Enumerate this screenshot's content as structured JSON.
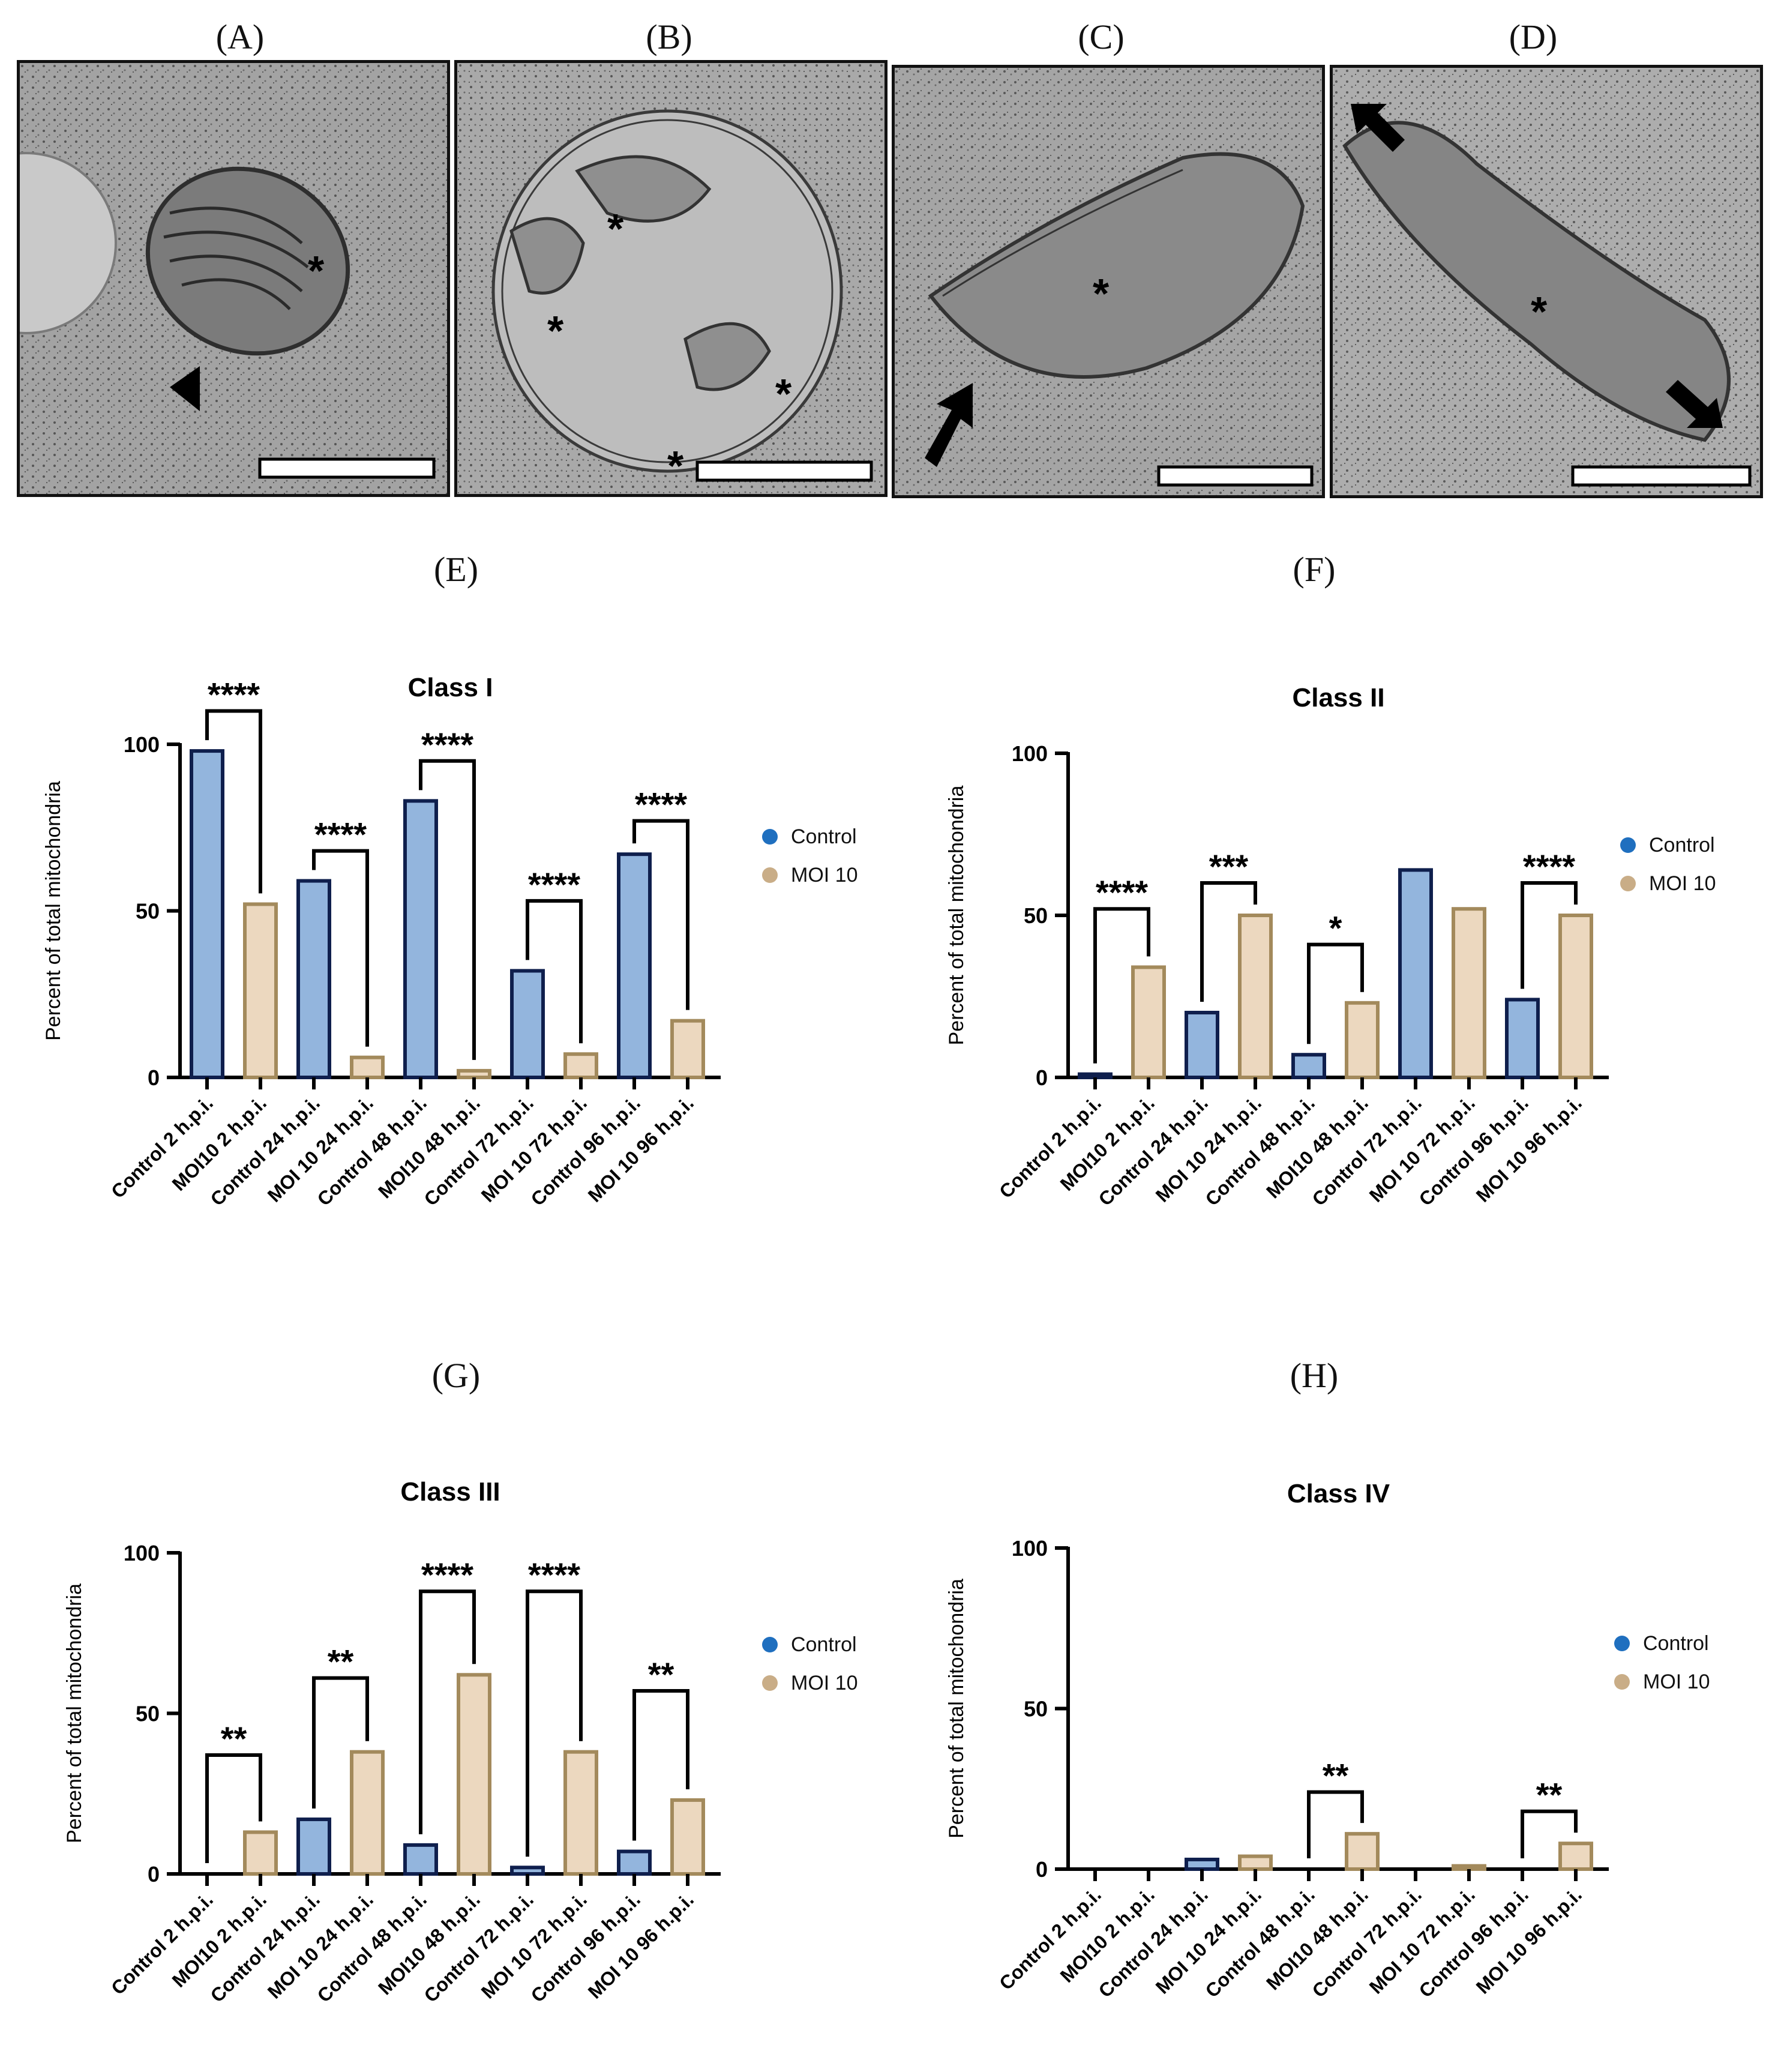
{
  "micrographs": [
    {
      "label": "(A)",
      "markers": [
        "mitochondrion-asterisk",
        "arrowhead"
      ]
    },
    {
      "label": "(B)",
      "markers": [
        "mitochondrion-asterisk"
      ]
    },
    {
      "label": "(C)",
      "markers": [
        "mitochondrion-asterisk",
        "arrow"
      ]
    },
    {
      "label": "(D)",
      "markers": [
        "mitochondrion-asterisk",
        "arrow"
      ]
    }
  ],
  "legend": {
    "control": "Control",
    "moi": "MOI 10"
  },
  "colors": {
    "control_fill": "#93b5dd",
    "control_edge": "#0f1f4d",
    "moi_fill": "#ecd8bf",
    "moi_edge": "#a38a5c",
    "control_dot": "#1f6fbf",
    "moi_dot": "#c9ad87"
  },
  "chart_data": [
    {
      "panel": "(E)",
      "type": "bar",
      "title": "Class I",
      "ylabel": "Percent of total mitochondria",
      "xlabel": "",
      "ylim": [
        0,
        100
      ],
      "yticks": [
        0,
        50,
        100
      ],
      "categories": [
        "Control 2 h.p.i.",
        "MOI10 2 h.p.i.",
        "Control 24 h.p.i.",
        "MOI 10 24 h.p.i.",
        "Control 48 h.p.i.",
        "MOI10 48 h.p.i.",
        "Control 72 h.p.i.",
        "MOI 10 72 h.p.i.",
        "Control 96 h.p.i.",
        "MOI 10 96 h.p.i."
      ],
      "values": [
        98,
        52,
        59,
        6,
        83,
        2,
        32,
        7,
        67,
        17
      ],
      "significance": [
        {
          "from": 0,
          "to": 1,
          "label": "****",
          "level": 110
        },
        {
          "from": 2,
          "to": 3,
          "label": "****",
          "level": 68
        },
        {
          "from": 4,
          "to": 5,
          "label": "****",
          "level": 95
        },
        {
          "from": 6,
          "to": 7,
          "label": "****",
          "level": 53
        },
        {
          "from": 8,
          "to": 9,
          "label": "****",
          "level": 77
        }
      ]
    },
    {
      "panel": "(F)",
      "type": "bar",
      "title": "Class II",
      "ylabel": "Percent of total mitochondria",
      "xlabel": "",
      "ylim": [
        0,
        100
      ],
      "yticks": [
        0,
        50,
        100
      ],
      "categories": [
        "Control 2 h.p.i.",
        "MOI10 2 h.p.i.",
        "Control 24 h.p.i.",
        "MOI 10 24 h.p.i.",
        "Control 48 h.p.i.",
        "MOI10 48 h.p.i.",
        "Control 72 h.p.i.",
        "MOI 10 72 h.p.i.",
        "Control 96 h.p.i.",
        "MOI 10 96 h.p.i."
      ],
      "values": [
        1,
        34,
        20,
        50,
        7,
        23,
        64,
        52,
        24,
        50
      ],
      "significance": [
        {
          "from": 0,
          "to": 1,
          "label": "****",
          "level": 52
        },
        {
          "from": 2,
          "to": 3,
          "label": "***",
          "level": 60
        },
        {
          "from": 4,
          "to": 5,
          "label": "*",
          "level": 41
        },
        {
          "from": 8,
          "to": 9,
          "label": "****",
          "level": 60
        }
      ]
    },
    {
      "panel": "(G)",
      "type": "bar",
      "title": "Class III",
      "ylabel": "Percent of total mitochondria",
      "xlabel": "",
      "ylim": [
        0,
        100
      ],
      "yticks": [
        0,
        50,
        100
      ],
      "categories": [
        "Control 2 h.p.i.",
        "MOI10 2 h.p.i.",
        "Control 24 h.p.i.",
        "MOI 10 24 h.p.i.",
        "Control 48 h.p.i.",
        "MOI10 48 h.p.i.",
        "Control 72 h.p.i.",
        "MOI 10 72 h.p.i.",
        "Control 96 h.p.i.",
        "MOI 10 96 h.p.i."
      ],
      "values": [
        0,
        13,
        17,
        38,
        9,
        62,
        2,
        38,
        7,
        23
      ],
      "significance": [
        {
          "from": 0,
          "to": 1,
          "label": "**",
          "level": 37
        },
        {
          "from": 2,
          "to": 3,
          "label": "**",
          "level": 61
        },
        {
          "from": 4,
          "to": 5,
          "label": "****",
          "level": 88
        },
        {
          "from": 6,
          "to": 7,
          "label": "****",
          "level": 88
        },
        {
          "from": 8,
          "to": 9,
          "label": "**",
          "level": 57
        }
      ]
    },
    {
      "panel": "(H)",
      "type": "bar",
      "title": "Class IV",
      "ylabel": "Percent of total mitochondria",
      "xlabel": "",
      "ylim": [
        0,
        100
      ],
      "yticks": [
        0,
        50,
        100
      ],
      "categories": [
        "Control 2 h.p.i.",
        "MOI10 2 h.p.i.",
        "Control 24 h.p.i.",
        "MOI 10 24 h.p.i.",
        "Control 48 h.p.i.",
        "MOI10 48 h.p.i.",
        "Control 72 h.p.i.",
        "MOI 10 72 h.p.i.",
        "Control 96 h.p.i.",
        "MOI 10 96 h.p.i."
      ],
      "values": [
        0,
        0,
        3,
        4,
        0,
        11,
        0,
        1,
        0,
        8
      ],
      "significance": [
        {
          "from": 4,
          "to": 5,
          "label": "**",
          "level": 24
        },
        {
          "from": 8,
          "to": 9,
          "label": "**",
          "level": 18
        }
      ]
    }
  ]
}
